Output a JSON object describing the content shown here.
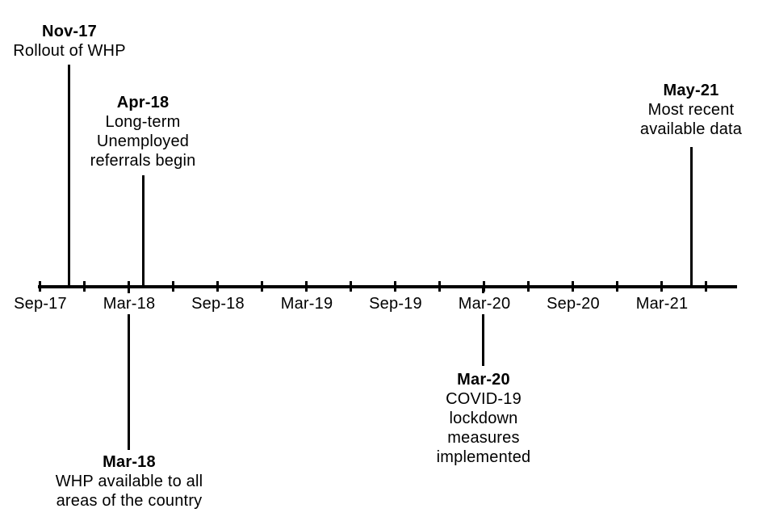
{
  "timeline": {
    "type": "timeline",
    "axis_labels": [
      "Sep-17",
      "Mar-18",
      "Sep-18",
      "Mar-19",
      "Sep-19",
      "Mar-20",
      "Sep-20",
      "Mar-21"
    ],
    "events": [
      {
        "date": "Nov-17",
        "side": "above",
        "lines": [
          "Rollout of WHP"
        ]
      },
      {
        "date": "Apr-18",
        "side": "above",
        "lines": [
          "Long-term",
          "Unemployed",
          "referrals begin"
        ]
      },
      {
        "date": "May-21",
        "side": "above",
        "lines": [
          "Most recent",
          "available data"
        ]
      },
      {
        "date": "Mar-18",
        "side": "below",
        "lines": [
          "WHP available to all",
          "areas of the country"
        ]
      },
      {
        "date": "Mar-20",
        "side": "below",
        "lines": [
          "COVID-19",
          "lockdown",
          "measures",
          "implemented"
        ]
      }
    ]
  },
  "colors": {
    "line": "#000000",
    "text": "#000000",
    "background": "#ffffff"
  }
}
